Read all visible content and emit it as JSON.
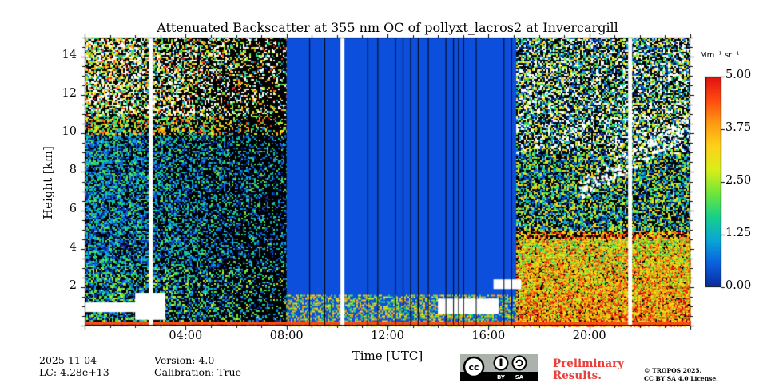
{
  "chart_data": {
    "type": "heatmap",
    "title": "Attenuated Backscatter at 355 nm OC of pollyxt_lacros2 at Invercargill",
    "xlabel": "Time [UTC]",
    "ylabel": "Height [km]",
    "xlim_hours": [
      0,
      24
    ],
    "ylim_km": [
      0,
      15
    ],
    "x_ticks": [
      {
        "hour": 4,
        "label": "04:00"
      },
      {
        "hour": 8,
        "label": "08:00"
      },
      {
        "hour": 12,
        "label": "12:00"
      },
      {
        "hour": 16,
        "label": "16:00"
      },
      {
        "hour": 20,
        "label": "20:00"
      }
    ],
    "y_ticks": [
      {
        "km": 2,
        "label": "2"
      },
      {
        "km": 4,
        "label": "4"
      },
      {
        "km": 6,
        "label": "6"
      },
      {
        "km": 8,
        "label": "8"
      },
      {
        "km": 10,
        "label": "10"
      },
      {
        "km": 12,
        "label": "12"
      },
      {
        "km": 14,
        "label": "14"
      }
    ],
    "colorbar": {
      "unit": "Mm⁻¹ sr⁻¹",
      "min": 0.0,
      "max": 5.0,
      "ticks": [
        {
          "value": 0.0,
          "label": "0.00"
        },
        {
          "value": 1.25,
          "label": "1.25"
        },
        {
          "value": 2.5,
          "label": "2.50"
        },
        {
          "value": 3.75,
          "label": "3.75"
        },
        {
          "value": 5.0,
          "label": "5.00"
        }
      ],
      "colors": [
        "#0a2a9b",
        "#0a5fe0",
        "#0aa5d8",
        "#17d08a",
        "#6ee63a",
        "#d8ee1a",
        "#ffd21a",
        "#ff9a12",
        "#ff4a10",
        "#e01010"
      ]
    },
    "regions": [
      {
        "name": "clear-night-noise-left",
        "t0": 0.0,
        "t1": 8.0,
        "kind": "noise"
      },
      {
        "name": "daytime-blue-block",
        "t0": 8.0,
        "t1": 17.1,
        "kind": "uniform",
        "value": 0.3
      },
      {
        "name": "evening-aerosol-and-clouds",
        "t0": 17.1,
        "t1": 24.0,
        "kind": "noise-high"
      }
    ],
    "gaps_hours": [
      2.6,
      10.2,
      21.6
    ],
    "thin_lines_hours": [
      8.9,
      9.5,
      11.2,
      11.6,
      12.3,
      12.6,
      12.9,
      13.2,
      13.6,
      14.3,
      14.6,
      14.8,
      15.0,
      15.5,
      16.6,
      16.9
    ]
  },
  "footer": {
    "date": "2025-11-04",
    "lc": "LC: 4.28e+13",
    "version": "Version: 4.0",
    "calibration": "Calibration: True",
    "preliminary": "Preliminary",
    "results": "Results.",
    "copyright": "© TROPOS 2025.",
    "license": "CC BY SA 4.0 License."
  },
  "license_badge": {
    "cc": "cc",
    "by": "BY",
    "sa": "SA"
  }
}
